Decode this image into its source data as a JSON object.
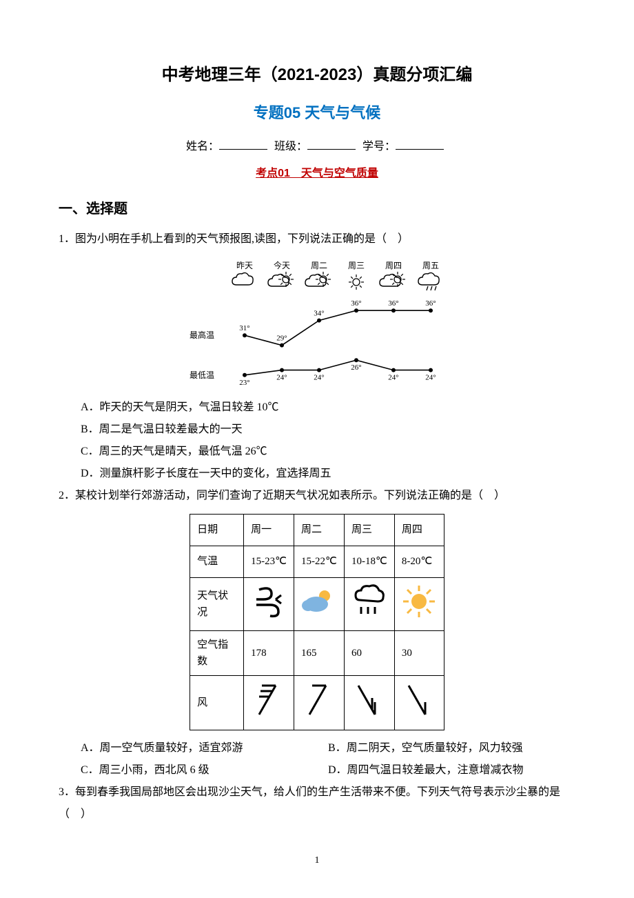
{
  "title_main": "中考地理三年（2021-2023）真题分项汇编",
  "title_sub": "专题05 天气与气候",
  "meta": {
    "name_label": "姓名：",
    "class_label": "班级：",
    "id_label": "学号："
  },
  "exam_point": "考点01　天气与空气质量",
  "section1": "一、选择题",
  "q1": {
    "stem": "1．图为小明在手机上看到的天气预报图,读图，下列说法正确的是（　）",
    "chart": {
      "days": [
        "昨天",
        "今天",
        "周二",
        "周三",
        "周四",
        "周五"
      ],
      "high_label": "最高温",
      "low_label": "最低温",
      "highs": [
        31,
        29,
        34,
        36,
        36,
        36
      ],
      "lows": [
        23,
        24,
        24,
        26,
        24,
        24
      ],
      "line_color": "#000000",
      "text_color": "#000000",
      "font_size": 11,
      "bg": "#ffffff"
    },
    "opts": {
      "A": "A．昨天的天气是阴天，气温日较差 10℃",
      "B": "B．周二是气温日较差最大的一天",
      "C": "C．周三的天气是晴天，最低气温 26℃",
      "D": "D．测量旗杆影子长度在一天中的变化，宜选择周五"
    }
  },
  "q2": {
    "stem": "2．某校计划举行郊游活动，同学们查询了近期天气状况如表所示。下列说法正确的是（　）",
    "table": {
      "head": {
        "date": "日期",
        "d1": "周一",
        "d2": "周二",
        "d3": "周三",
        "d4": "周四"
      },
      "temp": {
        "label": "气温",
        "d1": "15-23℃",
        "d2": "15-22℃",
        "d3": "10-18℃",
        "d4": "8-20℃"
      },
      "weather_row_label": "天气状况",
      "aqi": {
        "label": "空气指数",
        "d1": "178",
        "d2": "165",
        "d3": "60",
        "d4": "30"
      },
      "wind_row_label": "风",
      "icon_colors": {
        "sand": "#000000",
        "cloud": "#7fb4e0",
        "sun": "#f8b942",
        "rain": "#333333",
        "sunny": "#f8b942",
        "wind": "#000000"
      }
    },
    "opts": {
      "A": "A．周一空气质量较好，适宜郊游",
      "B": "B．周二阴天，空气质量较好，风力较强",
      "C": "C．周三小雨，西北风 6 级",
      "D": "D．周四气温日较差最大，注意增减衣物"
    }
  },
  "q3": {
    "stem": "3．每到春季我国局部地区会出现沙尘天气，给人们的生产生活带来不便。下列天气符号表示沙尘暴的是（　）"
  },
  "page_number": "1"
}
